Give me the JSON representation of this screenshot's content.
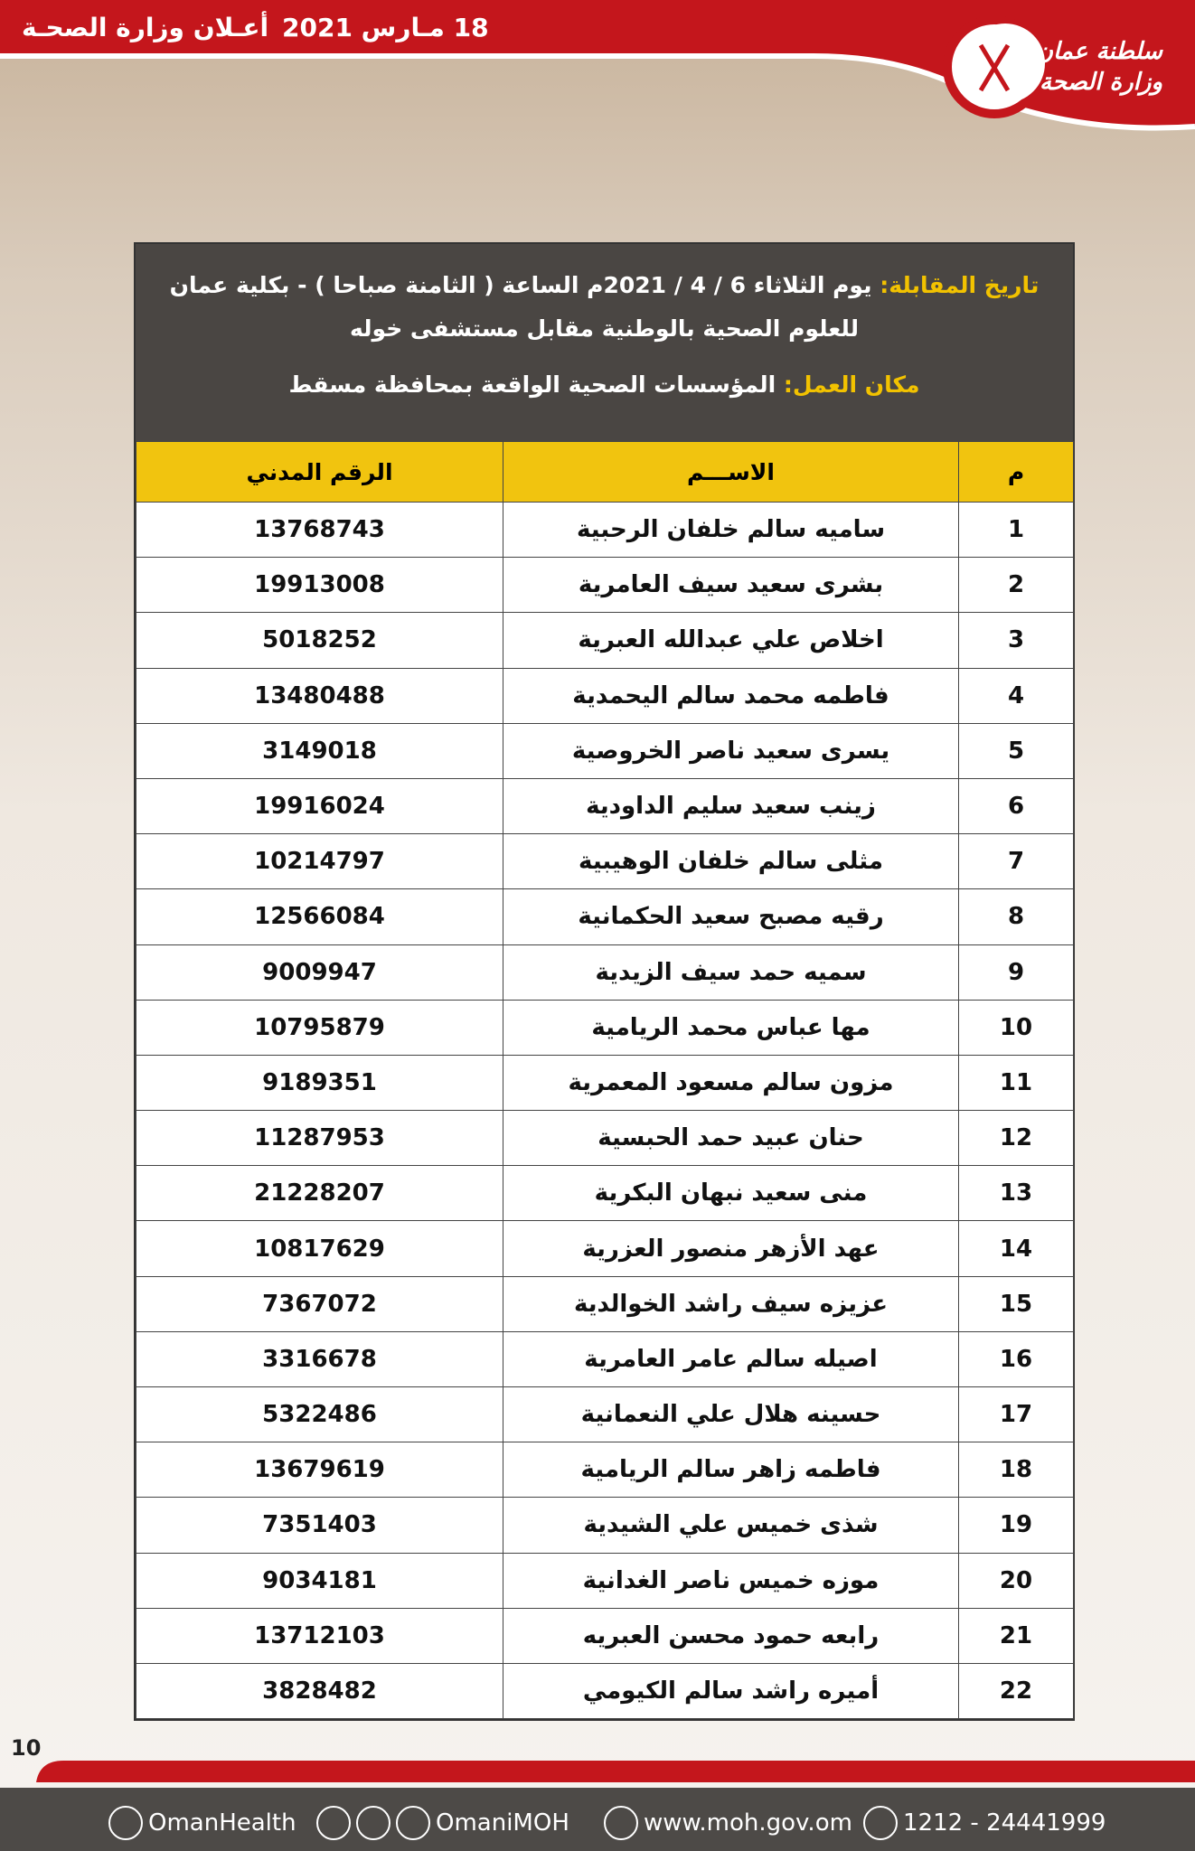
{
  "header": {
    "date": "18 مـارس 2021",
    "title": "أعـلان وزارة الصحـة",
    "logo_line1": "سلطنة عمان",
    "logo_line2": "وزارة الصحة"
  },
  "interview": {
    "date_label": "تاريخ المقابلة:",
    "date_text": "يوم الثلاثاء 6 / 4 / 2021م الساعة ( الثامنة صباحا ) - بكلية عمان للعلوم الصحية بالوطنية مقابل مستشفى خوله",
    "place_label": "مكان العمل:",
    "place_text": "المؤسسات الصحية الواقعة بمحافظة مسقط"
  },
  "table": {
    "columns": [
      "م",
      "الاســـم",
      "الرقم المدني"
    ],
    "rows": [
      [
        "1",
        "ساميه سالم خلفان الرحبية",
        "13768743"
      ],
      [
        "2",
        "بشرى سعيد سيف العامرية",
        "19913008"
      ],
      [
        "3",
        "اخلاص علي عبدالله العبرية",
        "5018252"
      ],
      [
        "4",
        "فاطمه محمد سالم اليحمدية",
        "13480488"
      ],
      [
        "5",
        "يسرى سعيد ناصر الخروصية",
        "3149018"
      ],
      [
        "6",
        "زينب سعيد سليم الداودية",
        "19916024"
      ],
      [
        "7",
        "مثلى سالم خلفان الوهيبية",
        "10214797"
      ],
      [
        "8",
        "رقيه مصبح سعيد الحكمانية",
        "12566084"
      ],
      [
        "9",
        "سميه حمد سيف الزيدية",
        "9009947"
      ],
      [
        "10",
        "مها عباس محمد الريامية",
        "10795879"
      ],
      [
        "11",
        "مزون سالم مسعود المعمرية",
        "9189351"
      ],
      [
        "12",
        "حنان عبيد حمد الحبسية",
        "11287953"
      ],
      [
        "13",
        "منى سعيد نبهان البكرية",
        "21228207"
      ],
      [
        "14",
        "عهد الأزهر منصور العزرية",
        "10817629"
      ],
      [
        "15",
        "عزيزه سيف راشد الخوالدية",
        "7367072"
      ],
      [
        "16",
        "اصيله سالم عامر العامرية",
        "3316678"
      ],
      [
        "17",
        "حسينه هلال علي النعمانية",
        "5322486"
      ],
      [
        "18",
        "فاطمه زاهر سالم الريامية",
        "13679619"
      ],
      [
        "19",
        "شذى خميس علي الشيدية",
        "7351403"
      ],
      [
        "20",
        "موزه خميس ناصر الغدانية",
        "9034181"
      ],
      [
        "21",
        "رابعه حمود محسن العبريه",
        "13712103"
      ],
      [
        "22",
        "أميره راشد سالم الكيومي",
        "3828482"
      ]
    ]
  },
  "page_number": "10",
  "footer": {
    "facebook": "OmanHealth",
    "social": "OmaniMOH",
    "website": "www.moh.gov.om",
    "phone": "1212 - 24441999"
  }
}
